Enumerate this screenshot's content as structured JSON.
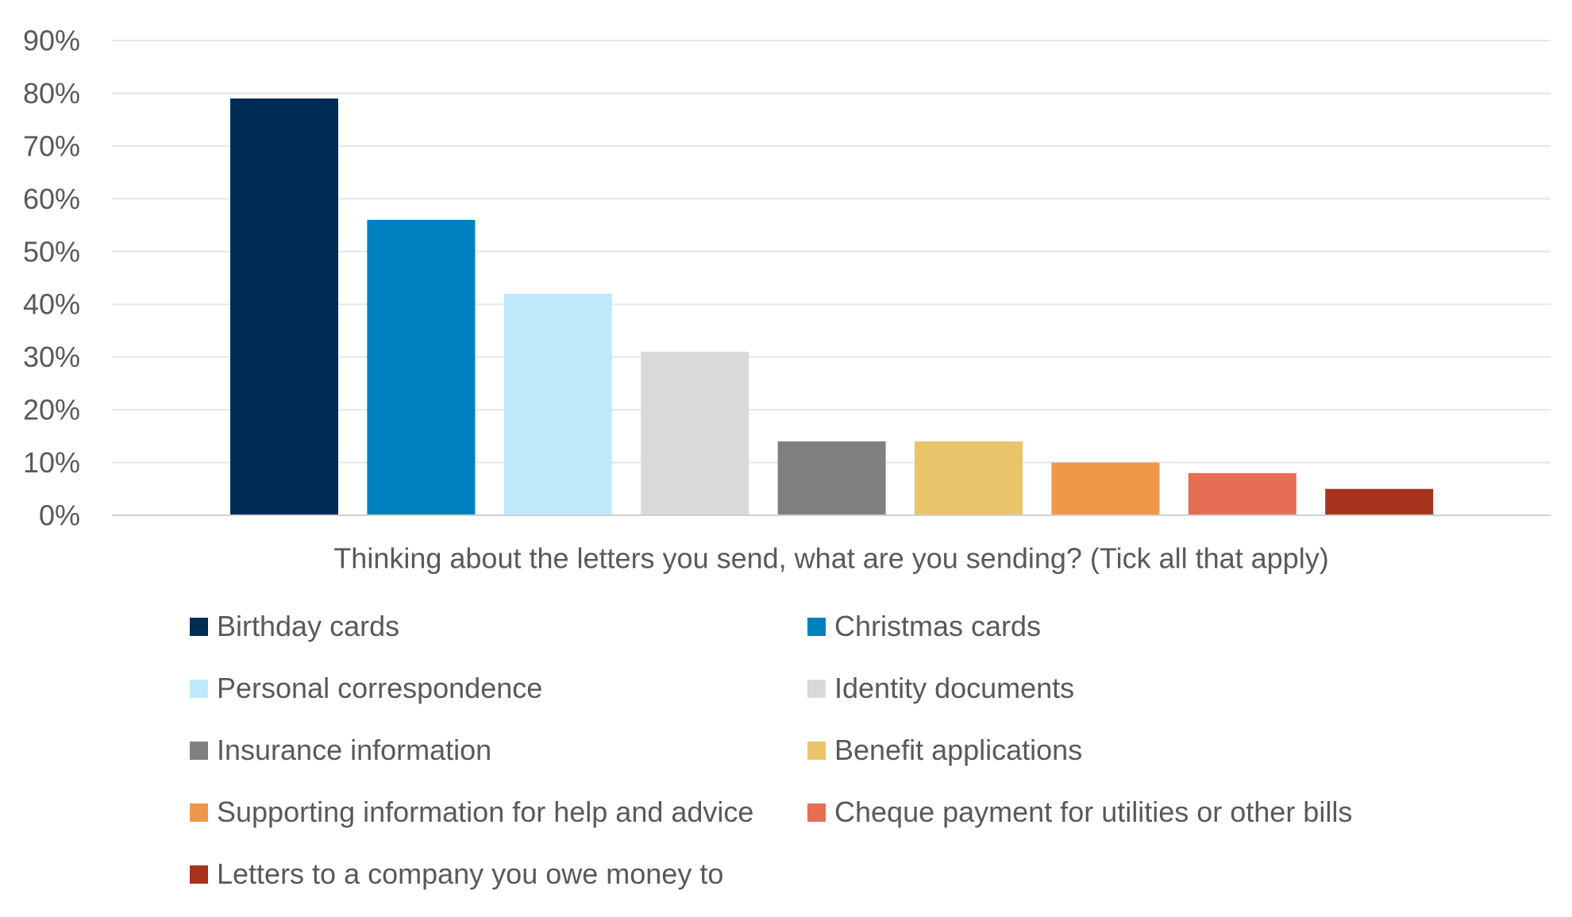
{
  "chart_data": {
    "type": "bar",
    "xlabel": "Thinking about the letters you send, what are you sending? (Tick all that apply)",
    "ylabel": "",
    "ylim": [
      0,
      90
    ],
    "yticks": [
      "0%",
      "10%",
      "20%",
      "30%",
      "40%",
      "50%",
      "60%",
      "70%",
      "80%",
      "90%"
    ],
    "grid": true,
    "legend_position": "bottom",
    "series": [
      {
        "name": "Birthday cards",
        "value": 79,
        "color": "#002D54"
      },
      {
        "name": "Christmas cards",
        "value": 56,
        "color": "#0081BF"
      },
      {
        "name": "Personal correspondence",
        "value": 42,
        "color": "#BFE9FA"
      },
      {
        "name": "Identity documents",
        "value": 31,
        "color": "#D9D9D9"
      },
      {
        "name": "Insurance information",
        "value": 14,
        "color": "#808080"
      },
      {
        "name": "Benefit applications",
        "value": 14,
        "color": "#E9C46A"
      },
      {
        "name": "Supporting information for help and advice",
        "value": 10,
        "color": "#F0984A"
      },
      {
        "name": "Cheque payment for utilities or other bills",
        "value": 8,
        "color": "#E56E54"
      },
      {
        "name": "Letters to a company you owe money to",
        "value": 5,
        "color": "#A8331C"
      }
    ]
  }
}
